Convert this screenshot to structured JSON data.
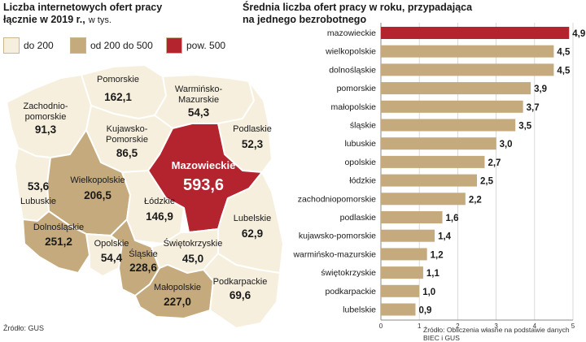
{
  "left": {
    "title_line1": "Liczba internetowych ofert pracy",
    "title_line2": "łącznie w 2019 r.,",
    "unit": "w tys.",
    "legend": [
      {
        "label": "do 200",
        "color": "#f7efdd"
      },
      {
        "label": "od 200 do 500",
        "color": "#c4aa7c"
      },
      {
        "label": "pow. 500",
        "color": "#b3242e"
      }
    ],
    "source": "Źródło: GUS",
    "regions": [
      {
        "name": "Pomorskie",
        "value": "162,1"
      },
      {
        "name": "Warmińsko-",
        "name2": "Mazurskie",
        "value": "54,3"
      },
      {
        "name": "Zachodnio-",
        "name2": "pomorskie",
        "value": "91,3"
      },
      {
        "name": "Kujawsko-",
        "name2": "Pomorskie",
        "value": "86,5"
      },
      {
        "name": "Podlaskie",
        "value": "52,3"
      },
      {
        "name": "Mazowieckie",
        "value": "593,6"
      },
      {
        "name": "Wielkopolskie",
        "value": "206,5"
      },
      {
        "name": "Lubuskie",
        "value": "53,6"
      },
      {
        "name": "Łódzkie",
        "value": "146,9"
      },
      {
        "name": "Lubelskie",
        "value": "62,9"
      },
      {
        "name": "Dolnośląskie",
        "value": "251,2"
      },
      {
        "name": "Opolskie",
        "value": "54,4"
      },
      {
        "name": "Śląskie",
        "value": "228,6"
      },
      {
        "name": "Świętokrzyskie",
        "value": "45,0"
      },
      {
        "name": "Małopolskie",
        "value": "227,0"
      },
      {
        "name": "Podkarpackie",
        "value": "69,6"
      }
    ]
  },
  "right": {
    "title_line1": "Średnia liczba ofert pracy w roku, przypadająca",
    "title_line2": "na jednego bezrobotnego",
    "source": "Źródło: Obliczenia własne na podstawie danych BIEC i GUS"
  },
  "colors": {
    "bar": "#c4aa7c",
    "highlight": "#b3242e",
    "low": "#f7efdd",
    "mid": "#c4aa7c",
    "border": "#ffffff"
  },
  "chart_data": {
    "type": "bar",
    "orientation": "horizontal",
    "title": "Średnia liczba ofert pracy w roku, przypadająca na jednego bezrobotnego",
    "categories": [
      "mazowieckie",
      "wielkopolskie",
      "dolnośląskie",
      "pomorskie",
      "małopolskie",
      "śląskie",
      "lubuskie",
      "opolskie",
      "łódzkie",
      "zachodniopomorskie",
      "podlaskie",
      "kujawsko-pomorskie",
      "warmińsko-mazurskie",
      "świętokrzyskie",
      "podkarpackie",
      "lubelskie"
    ],
    "values": [
      4.9,
      4.5,
      4.5,
      3.9,
      3.7,
      3.5,
      3.0,
      2.7,
      2.5,
      2.2,
      1.6,
      1.4,
      1.2,
      1.1,
      1.0,
      0.9
    ],
    "value_labels": [
      "4,9",
      "4,5",
      "4,5",
      "3,9",
      "3,7",
      "3,5",
      "3,0",
      "2,7",
      "2,5",
      "2,2",
      "1,6",
      "1,4",
      "1,2",
      "1,1",
      "1,0",
      "0,9"
    ],
    "highlight_category": "mazowieckie",
    "xlim": [
      0,
      5
    ],
    "xticks": [
      "0",
      "1",
      "2",
      "3",
      "4",
      "5"
    ],
    "grid": true
  }
}
